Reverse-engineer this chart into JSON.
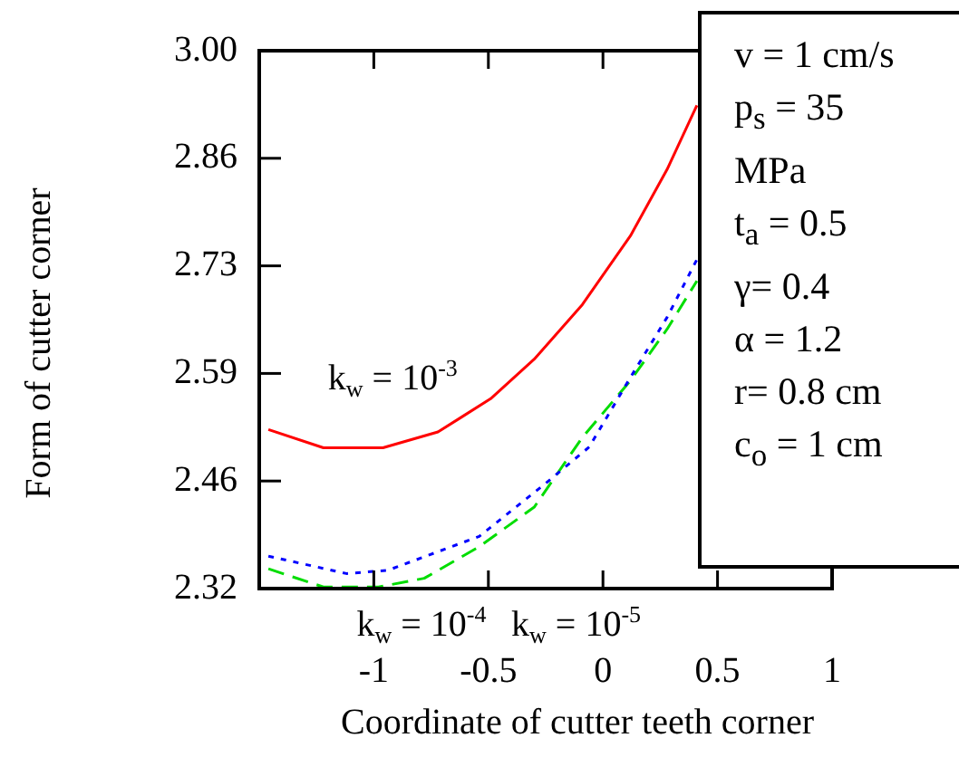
{
  "chart_data": {
    "type": "line",
    "xlabel": "Coordinate of cutter teeth corner",
    "ylabel": "Form of cutter corner",
    "xlim": [
      -1.5,
      1
    ],
    "xticks": [
      -1,
      -0.5,
      0,
      0.5,
      1
    ],
    "ylim": [
      2.32,
      3.0
    ],
    "yticks": [
      {
        "value": 2.32,
        "label": "2.32"
      },
      {
        "value": 2.456,
        "label": "2.46"
      },
      {
        "value": 2.592,
        "label": "2.59"
      },
      {
        "value": 2.728,
        "label": "2.73"
      },
      {
        "value": 2.864,
        "label": "2.86"
      },
      {
        "value": 3.0,
        "label": "3.00"
      }
    ],
    "grid": false,
    "legend": false,
    "marker": "none",
    "series": [
      {
        "color": "#ff0000",
        "line_style": "solid",
        "x": [
          -1.46,
          -1.22,
          -0.96,
          -0.72,
          -0.49,
          -0.3,
          -0.09,
          0.12,
          0.28,
          0.41
        ],
        "values": [
          2.521,
          2.498,
          2.498,
          2.518,
          2.56,
          2.61,
          2.679,
          2.766,
          2.85,
          2.931
        ]
      },
      {
        "color": "#0000ff",
        "line_style": "dotted",
        "x": [
          -1.46,
          -1.12,
          -0.94,
          -0.54,
          -0.25,
          -0.06,
          0.12,
          0.28,
          0.41
        ],
        "values": [
          2.361,
          2.339,
          2.343,
          2.386,
          2.453,
          2.499,
          2.587,
          2.663,
          2.736
        ]
      },
      {
        "color": "#00dd00",
        "line_style": "dashed",
        "x": [
          -1.46,
          -1.22,
          -0.98,
          -0.78,
          -0.54,
          -0.3,
          -0.09,
          0.12,
          0.28,
          0.41
        ],
        "values": [
          2.345,
          2.322,
          2.322,
          2.333,
          2.373,
          2.423,
          2.511,
          2.583,
          2.648,
          2.709
        ]
      }
    ],
    "annotations": [
      "k$_{w}$ = 10$^{-3}$",
      "k$_{w}$ = 10$^{-4}$",
      "k$_{w}$ = 10$^{-5}$",
      "v = 1 cm/s",
      "p$_{s}$ = 35 MPa",
      "t$_{a}$ = 0.5",
      "γ= 0.4",
      "α = 1.2",
      "r= 0.8 cm",
      "c$_{o}$ = 1 cm"
    ]
  }
}
